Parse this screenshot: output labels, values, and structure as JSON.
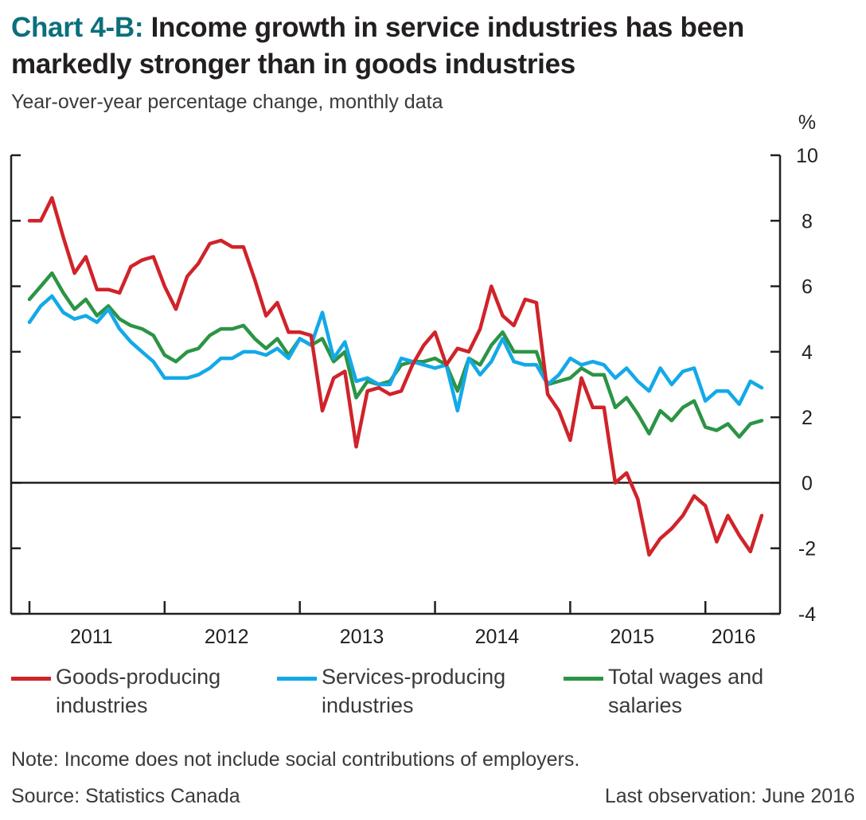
{
  "header": {
    "chart_number": "Chart 4-B:",
    "title": "Income growth in service industries has been markedly stronger than in goods industries",
    "subtitle": "Year-over-year percentage change, monthly data"
  },
  "footer": {
    "note": "Note: Income does not include social contributions of employers.",
    "source": "Source: Statistics Canada",
    "last_observation": "Last observation: June 2016"
  },
  "legend": [
    {
      "label": "Goods-producing industries",
      "color": "#d0232a"
    },
    {
      "label": "Services-producing industries",
      "color": "#13a9e8"
    },
    {
      "label": "Total wages and salaries",
      "color": "#2c9445"
    }
  ],
  "chart_data": {
    "type": "line",
    "ylabel": "%",
    "ylim": [
      -4,
      10
    ],
    "yticks": [
      "10",
      "8",
      "6",
      "4",
      "2",
      "0",
      "-2",
      "-4"
    ],
    "x_tick_labels": [
      "2011",
      "2012",
      "2013",
      "2014",
      "2015",
      "2016"
    ],
    "x_start": "2011-01",
    "x_end": "2016-06",
    "grid": false,
    "series": [
      {
        "name": "Goods-producing industries",
        "color": "#d0232a",
        "values": [
          8.0,
          8.0,
          8.7,
          7.5,
          6.4,
          6.9,
          5.9,
          5.9,
          5.8,
          6.6,
          6.8,
          6.9,
          6.0,
          5.3,
          6.3,
          6.7,
          7.3,
          7.4,
          7.2,
          7.2,
          6.2,
          5.1,
          5.5,
          4.6,
          4.6,
          4.5,
          2.2,
          3.2,
          3.4,
          1.1,
          2.8,
          2.9,
          2.7,
          2.8,
          3.6,
          4.2,
          4.6,
          3.6,
          4.1,
          4.0,
          4.7,
          6.0,
          5.1,
          4.8,
          5.6,
          5.5,
          2.7,
          2.2,
          1.3,
          3.2,
          2.3,
          2.3,
          0.0,
          0.3,
          -0.5,
          -2.2,
          -1.7,
          -1.4,
          -1.0,
          -0.4,
          -0.7,
          -1.8,
          -1.0,
          -1.6,
          -2.1,
          -1.0
        ]
      },
      {
        "name": "Services-producing industries",
        "color": "#13a9e8",
        "values": [
          4.9,
          5.4,
          5.7,
          5.2,
          5.0,
          5.1,
          4.9,
          5.3,
          4.7,
          4.3,
          4.0,
          3.7,
          3.2,
          3.2,
          3.2,
          3.3,
          3.5,
          3.8,
          3.8,
          4.0,
          4.0,
          3.9,
          4.1,
          3.8,
          4.4,
          4.2,
          5.2,
          3.8,
          4.3,
          3.1,
          3.2,
          3.0,
          3.0,
          3.8,
          3.7,
          3.6,
          3.5,
          3.6,
          2.2,
          3.8,
          3.3,
          3.7,
          4.4,
          3.7,
          3.6,
          3.6,
          3.0,
          3.3,
          3.8,
          3.6,
          3.7,
          3.6,
          3.2,
          3.5,
          3.1,
          2.8,
          3.5,
          3.0,
          3.4,
          3.5,
          2.5,
          2.8,
          2.8,
          2.4,
          3.1,
          2.9
        ]
      },
      {
        "name": "Total wages and salaries",
        "color": "#2c9445",
        "values": [
          5.6,
          6.0,
          6.4,
          5.8,
          5.3,
          5.6,
          5.1,
          5.4,
          5.0,
          4.8,
          4.7,
          4.5,
          3.9,
          3.7,
          4.0,
          4.1,
          4.5,
          4.7,
          4.7,
          4.8,
          4.4,
          4.1,
          4.4,
          3.9,
          4.4,
          4.2,
          4.4,
          3.7,
          4.0,
          2.6,
          3.1,
          3.0,
          3.1,
          3.6,
          3.7,
          3.7,
          3.8,
          3.6,
          2.8,
          3.8,
          3.6,
          4.2,
          4.6,
          4.0,
          4.0,
          4.0,
          3.0,
          3.1,
          3.2,
          3.5,
          3.3,
          3.3,
          2.3,
          2.6,
          2.1,
          1.5,
          2.2,
          1.9,
          2.3,
          2.5,
          1.7,
          1.6,
          1.8,
          1.4,
          1.8,
          1.9
        ]
      }
    ]
  }
}
